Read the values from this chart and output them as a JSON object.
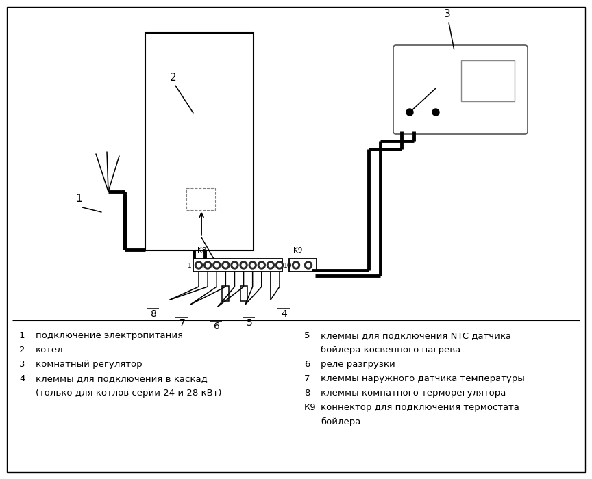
{
  "bg": "#ffffff",
  "lc": "#000000",
  "thick": 3.5,
  "thin": 1.1,
  "legend_left": [
    [
      "1",
      "подключение электропитания"
    ],
    [
      "2",
      "котел"
    ],
    [
      "3",
      "комнатный регулятор"
    ],
    [
      "4",
      "клеммы для подключения в каскад"
    ],
    [
      "",
      "(только для котлов серии 24 и 28 кВт)"
    ]
  ],
  "legend_right": [
    [
      "5",
      "клеммы для подключения NTC датчика"
    ],
    [
      "",
      "бойлера косвенного нагрева"
    ],
    [
      "6",
      "реле разгрузки"
    ],
    [
      "7",
      "клеммы наружного датчика температуры"
    ],
    [
      "8",
      "клеммы комнатного терморегулятора"
    ],
    [
      "К9",
      "коннектор для подключения термостата"
    ],
    [
      "",
      "бойлера"
    ]
  ]
}
